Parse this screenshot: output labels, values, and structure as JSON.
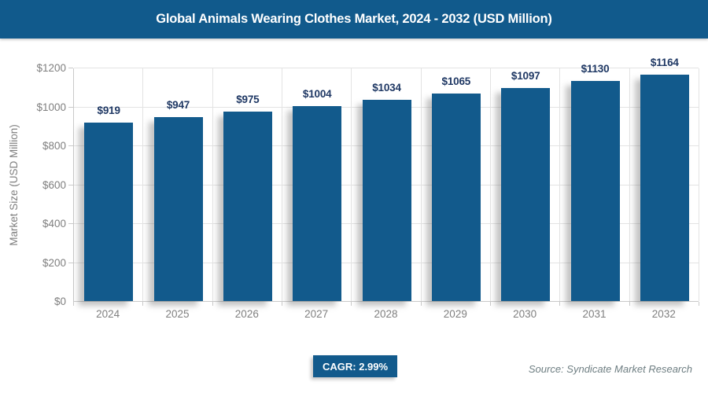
{
  "header": {
    "title": "Global Animals Wearing Clothes Market, 2024 - 2032 (USD Million)"
  },
  "chart_data": {
    "type": "bar",
    "title": "Global Animals Wearing Clothes Market, 2024 - 2032 (USD Million)",
    "categories": [
      "2024",
      "2025",
      "2026",
      "2027",
      "2028",
      "2029",
      "2030",
      "2031",
      "2032"
    ],
    "values": [
      919,
      947,
      975,
      1004,
      1034,
      1065,
      1097,
      1130,
      1164
    ],
    "value_labels": [
      "$919",
      "$947",
      "$975",
      "$1004",
      "$1034",
      "$1065",
      "$1097",
      "$1130",
      "$1164"
    ],
    "xlabel": "",
    "ylabel": "Market Size (USD Million)",
    "ylim": [
      0,
      1200
    ],
    "ytick_step": 200,
    "ytick_labels": [
      "$0",
      "$200",
      "$400",
      "$600",
      "$800",
      "$1000",
      "$1200"
    ],
    "grid": true,
    "legend": "none",
    "bar_color": "#125A8C",
    "value_label_color": "#1F3864"
  },
  "footer": {
    "cagr_label": "CAGR: 2.99%",
    "source": "Source: Syndicate Market Research"
  },
  "colors": {
    "header_bg": "#115A8C",
    "header_text": "#FFFFFF",
    "bar": "#125A8C",
    "gridline": "#E3E3E3",
    "axis_line": "#C9C9C9",
    "tick_text": "#7F7F7F",
    "source_text": "#6E7E82",
    "badge_bg": "#125A8C"
  }
}
